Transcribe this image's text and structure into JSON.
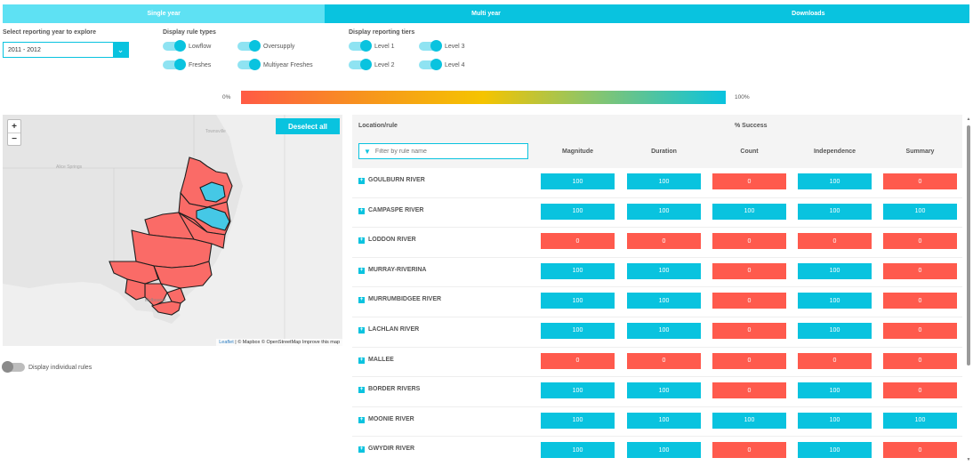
{
  "tabs": [
    {
      "label": "Single year",
      "active": true
    },
    {
      "label": "Multi year",
      "active": false
    },
    {
      "label": "Downloads",
      "active": false
    }
  ],
  "year_select": {
    "label": "Select reporting year to explore",
    "value": "2011 - 2012"
  },
  "rule_types": {
    "label": "Display rule types",
    "items": [
      "Lowflow",
      "Oversupply",
      "Freshes",
      "Multiyear Freshes"
    ]
  },
  "tiers": {
    "label": "Display reporting tiers",
    "items": [
      "Level 1",
      "Level 3",
      "Level 2",
      "Level 4"
    ]
  },
  "legend": {
    "min": "0%",
    "max": "100%"
  },
  "map": {
    "deselect_label": "Deselect all",
    "zoom_in": "+",
    "zoom_out": "−",
    "attribution_leaflet": "Leaflet",
    "attribution_rest": " | © Mapbox © OpenStreetMap Improve this map",
    "display_individual_label": "Display individual rules"
  },
  "table": {
    "location_header": "Location/rule",
    "success_header": "% Success",
    "filter_placeholder": "Filter by rule name",
    "columns": [
      "Magnitude",
      "Duration",
      "Count",
      "Independence",
      "Summary"
    ],
    "rows": [
      {
        "name": "GOULBURN RIVER",
        "values": [
          "100",
          "100",
          "0",
          "100",
          "0"
        ]
      },
      {
        "name": "CAMPASPE RIVER",
        "values": [
          "100",
          "100",
          "100",
          "100",
          "100"
        ]
      },
      {
        "name": "LODDON RIVER",
        "values": [
          "0",
          "0",
          "0",
          "0",
          "0"
        ]
      },
      {
        "name": "MURRAY-RIVERINA",
        "values": [
          "100",
          "100",
          "0",
          "100",
          "0"
        ]
      },
      {
        "name": "MURRUMBIDGEE RIVER",
        "values": [
          "100",
          "100",
          "0",
          "100",
          "0"
        ]
      },
      {
        "name": "LACHLAN RIVER",
        "values": [
          "100",
          "100",
          "0",
          "100",
          "0"
        ]
      },
      {
        "name": "MALLEE",
        "values": [
          "0",
          "0",
          "0",
          "0",
          "0"
        ]
      },
      {
        "name": "BORDER RIVERS",
        "values": [
          "100",
          "100",
          "0",
          "100",
          "0"
        ]
      },
      {
        "name": "MOONIE RIVER",
        "values": [
          "100",
          "100",
          "100",
          "100",
          "100"
        ]
      },
      {
        "name": "GWYDIR RIVER",
        "values": [
          "100",
          "100",
          "0",
          "100",
          "0"
        ]
      }
    ]
  },
  "colors": {
    "accent": "#09c3df",
    "fail": "#ff5a4d",
    "region_fail": "#fa6b67",
    "region_ok": "#45c8e6"
  }
}
